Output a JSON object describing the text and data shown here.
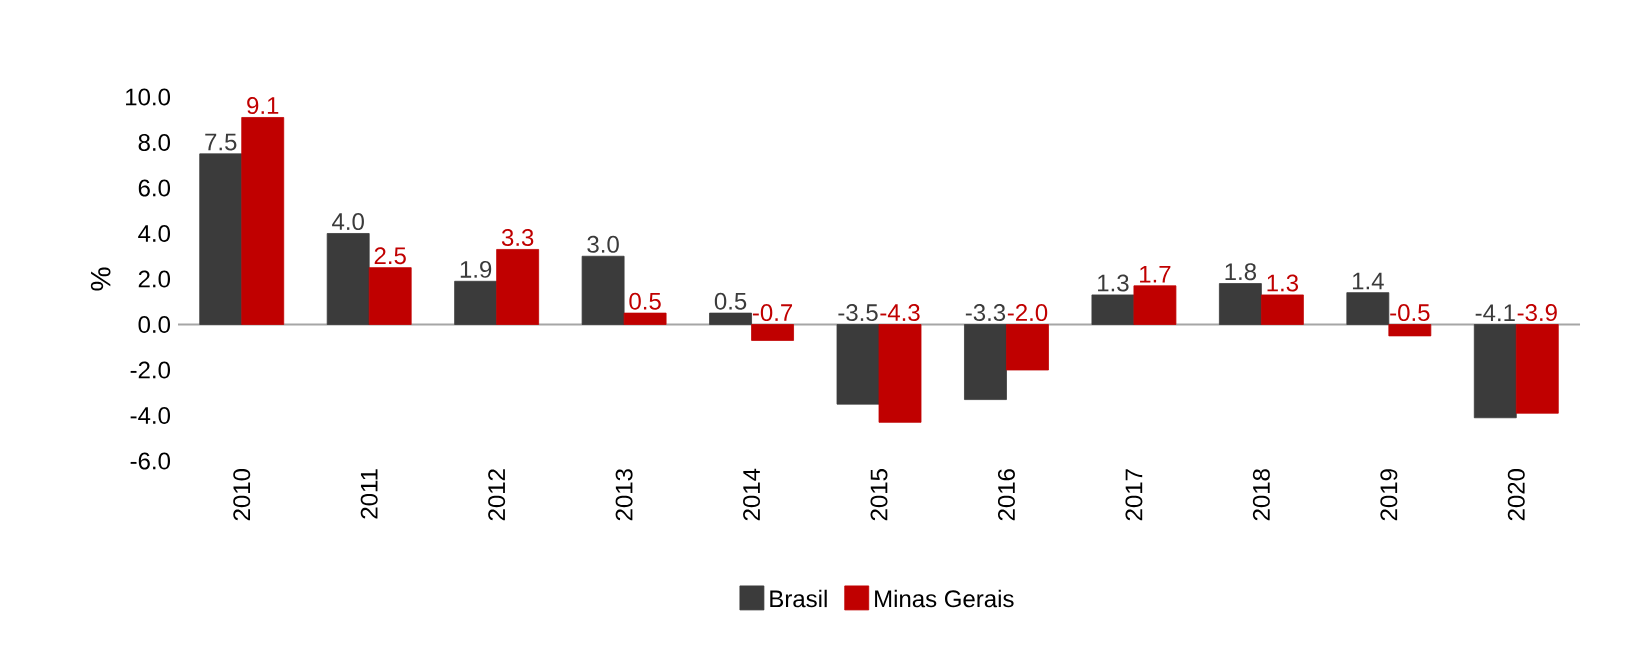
{
  "chart_data": {
    "type": "bar",
    "ylabel": "%",
    "categories": [
      "2010",
      "2011",
      "2012",
      "2013",
      "2014",
      "2015",
      "2016",
      "2017",
      "2018",
      "2019",
      "2020"
    ],
    "series": [
      {
        "name": "Brasil",
        "color": "#3b3b3b",
        "values": [
          7.5,
          4.0,
          1.9,
          3.0,
          0.5,
          -3.5,
          -3.3,
          1.3,
          1.8,
          1.4,
          -4.1
        ],
        "value_labels": [
          "7.5",
          "4.0",
          "1.9",
          "3.0",
          "0.5",
          "-3.5",
          "-3.3",
          "1.3",
          "1.8",
          "1.4",
          "-4.1"
        ]
      },
      {
        "name": "Minas Gerais",
        "color": "#c00000",
        "values": [
          9.1,
          2.5,
          3.3,
          0.5,
          -0.7,
          -4.3,
          -2.0,
          1.7,
          1.3,
          -0.5,
          -3.9
        ],
        "value_labels": [
          "9.1",
          "2.5",
          "3.3",
          "0.5",
          "-0.7",
          "-4.3",
          "-2.0",
          "1.7",
          "1.3",
          "-0.5",
          "-3.9"
        ]
      }
    ],
    "ylim": [
      -6,
      10
    ],
    "yticks": [
      {
        "value": -6,
        "label": "-6.0"
      },
      {
        "value": -4,
        "label": "-4.0"
      },
      {
        "value": -2,
        "label": "-2.0"
      },
      {
        "value": 0,
        "label": "0.0"
      },
      {
        "value": 2,
        "label": "2.0"
      },
      {
        "value": 4,
        "label": "4.0"
      },
      {
        "value": 6,
        "label": "6.0"
      },
      {
        "value": 8,
        "label": "8.0"
      },
      {
        "value": 10,
        "label": "10.0"
      }
    ],
    "legend": "bottom"
  }
}
